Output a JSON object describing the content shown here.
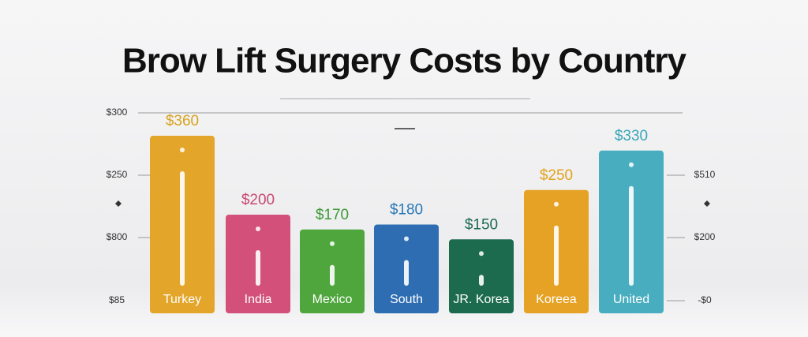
{
  "chart_data": {
    "type": "bar",
    "title": "Brow Lift Surgery Costs by Country",
    "categories": [
      "Turkey",
      "India",
      "Mexico",
      "South",
      "JR. Korea",
      "Koreea",
      "United"
    ],
    "values": [
      360,
      200,
      170,
      180,
      150,
      250,
      330
    ],
    "value_labels": [
      "$360",
      "$200",
      "$170",
      "$180",
      "$150",
      "$250",
      "$330"
    ],
    "colors": [
      "#e3a62a",
      "#d2507a",
      "#4ea63c",
      "#2f6db3",
      "#1d6b4e",
      "#e6a224",
      "#47adbf"
    ],
    "label_colors": [
      "#d9a21e",
      "#c84a6e",
      "#3d9a34",
      "#2a78b8",
      "#1d6b4e",
      "#e2a21c",
      "#3aa6b8"
    ],
    "ylim": [
      0,
      400
    ],
    "left_axis_labels": [
      "$300",
      "$250",
      "$800",
      "$85"
    ],
    "right_axis_labels": [
      "$510",
      "$200",
      "-$0"
    ]
  }
}
